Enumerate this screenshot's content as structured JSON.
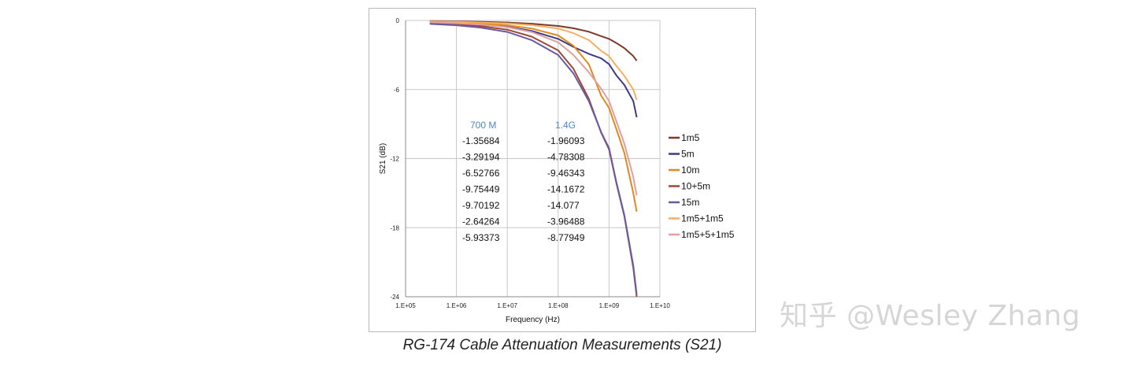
{
  "chart_data": {
    "type": "line",
    "title": "",
    "caption": "RG-174 Cable Attenuation Measurements (S21)",
    "xlabel": "Frequency (Hz)",
    "ylabel": "S21 (dB)",
    "xscale": "log",
    "xlim": [
      100000,
      10000000000
    ],
    "ylim": [
      -24,
      0
    ],
    "x_ticks": [
      "1.E+05",
      "1.E+06",
      "1.E+07",
      "1.E+08",
      "1.E+09",
      "1.E+10"
    ],
    "y_ticks": [
      "0",
      "-6",
      "-12",
      "-18",
      "-24"
    ],
    "y_tick_values": [
      0,
      -6,
      -12,
      -18,
      -24
    ],
    "grid": true,
    "legend_position": "right",
    "x": [
      300000,
      1000000,
      3000000,
      10000000,
      30000000,
      100000000,
      200000000,
      400000000,
      700000000,
      1000000000,
      1400000000,
      2000000000,
      3000000000,
      3500000000
    ],
    "series": [
      {
        "name": "1m5",
        "color": "#7b3a2a",
        "values": [
          -0.05,
          -0.08,
          -0.12,
          -0.18,
          -0.28,
          -0.48,
          -0.68,
          -0.98,
          -1.36,
          -1.6,
          -1.96,
          -2.4,
          -3.1,
          -3.5
        ]
      },
      {
        "name": "5m",
        "color": "#3f3a84",
        "values": [
          -0.2,
          -0.28,
          -0.38,
          -0.55,
          -0.9,
          -1.6,
          -2.3,
          -2.9,
          -3.29,
          -3.8,
          -4.78,
          -5.6,
          -7.0,
          -8.4
        ]
      },
      {
        "name": "10m",
        "color": "#e08a1e",
        "values": [
          -0.1,
          -0.18,
          -0.28,
          -0.42,
          -0.7,
          -1.3,
          -2.2,
          -3.8,
          -6.53,
          -7.6,
          -9.46,
          -11.5,
          -15.0,
          -16.6
        ]
      },
      {
        "name": "10+5m",
        "color": "#a04838",
        "values": [
          -0.22,
          -0.32,
          -0.5,
          -0.8,
          -1.4,
          -2.6,
          -4.2,
          -6.8,
          -9.75,
          -11.2,
          -14.17,
          -17.0,
          -21.5,
          -24.0
        ]
      },
      {
        "name": "15m",
        "color": "#6a5aa2",
        "values": [
          -0.3,
          -0.42,
          -0.62,
          -1.0,
          -1.7,
          -3.0,
          -4.6,
          -7.0,
          -9.7,
          -11.1,
          -14.08,
          -16.9,
          -21.3,
          -23.8
        ]
      },
      {
        "name": "1m5+1m5",
        "color": "#f4b060",
        "values": [
          -0.08,
          -0.12,
          -0.18,
          -0.26,
          -0.4,
          -0.7,
          -1.1,
          -1.7,
          -2.64,
          -3.1,
          -3.96,
          -4.8,
          -6.0,
          -6.9
        ]
      },
      {
        "name": "1m5+5+1m5",
        "color": "#e0a0a0",
        "values": [
          -0.15,
          -0.24,
          -0.36,
          -0.58,
          -1.0,
          -1.9,
          -3.0,
          -4.5,
          -5.93,
          -7.0,
          -8.78,
          -10.7,
          -13.6,
          -15.2
        ]
      }
    ],
    "annotation_table": {
      "headers": [
        "700 M",
        "1.4G"
      ],
      "rows": [
        [
          "-1.35684",
          "-1.96093"
        ],
        [
          "-3.29194",
          "-4.78308"
        ],
        [
          "-6.52766",
          "-9.46343"
        ],
        [
          "-9.75449",
          "-14.1672"
        ],
        [
          "-9.70192",
          "-14.077"
        ],
        [
          "-2.64264",
          "-3.96488"
        ],
        [
          "-5.93373",
          "-8.77949"
        ]
      ]
    }
  },
  "watermark": "知乎 @Wesley Zhang"
}
